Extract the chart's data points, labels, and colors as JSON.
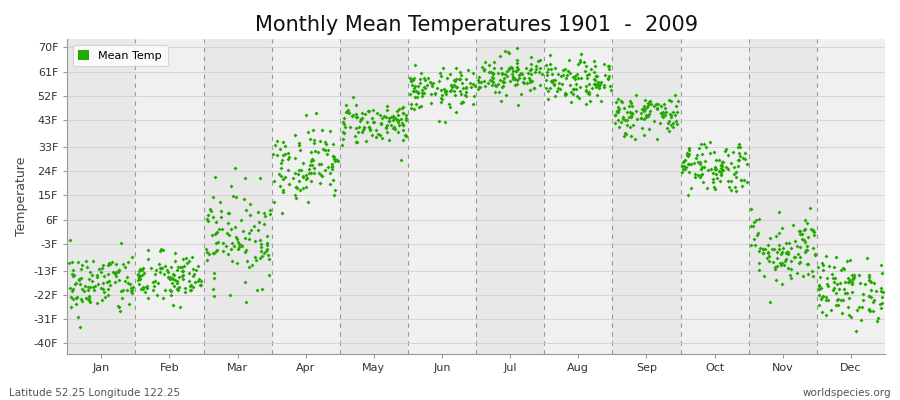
{
  "title": "Monthly Mean Temperatures 1901  -  2009",
  "ylabel": "Temperature",
  "yticks": [
    -40,
    -31,
    -22,
    -13,
    -3,
    6,
    15,
    24,
    33,
    43,
    52,
    61,
    70
  ],
  "ytick_labels": [
    "-40F",
    "-31F",
    "-22F",
    "-13F",
    "-3F",
    "6F",
    "15F",
    "24F",
    "33F",
    "43F",
    "52F",
    "61F",
    "70F"
  ],
  "ylim": [
    -44,
    73
  ],
  "months": [
    "Jan",
    "Feb",
    "Mar",
    "Apr",
    "May",
    "Jun",
    "Jul",
    "Aug",
    "Sep",
    "Oct",
    "Nov",
    "Dec"
  ],
  "dot_color": "#22aa00",
  "background_color": "#ffffff",
  "band_color_dark": "#e8e8e8",
  "band_color_light": "#f0f0f0",
  "legend_label": "Mean Temp",
  "footer_left": "Latitude 52.25 Longitude 122.25",
  "footer_right": "worldspecies.org",
  "title_fontsize": 15,
  "monthly_means": [
    -18,
    -16,
    0,
    27,
    42,
    54,
    60,
    57,
    45,
    26,
    -5,
    -20
  ],
  "monthly_std": [
    6,
    5,
    9,
    7,
    4,
    4,
    4,
    4,
    4,
    5,
    7,
    6
  ],
  "n_years": 109,
  "seed": 42,
  "dot_size": 4,
  "xlim_left": 0.3,
  "xlim_right": 12.7
}
